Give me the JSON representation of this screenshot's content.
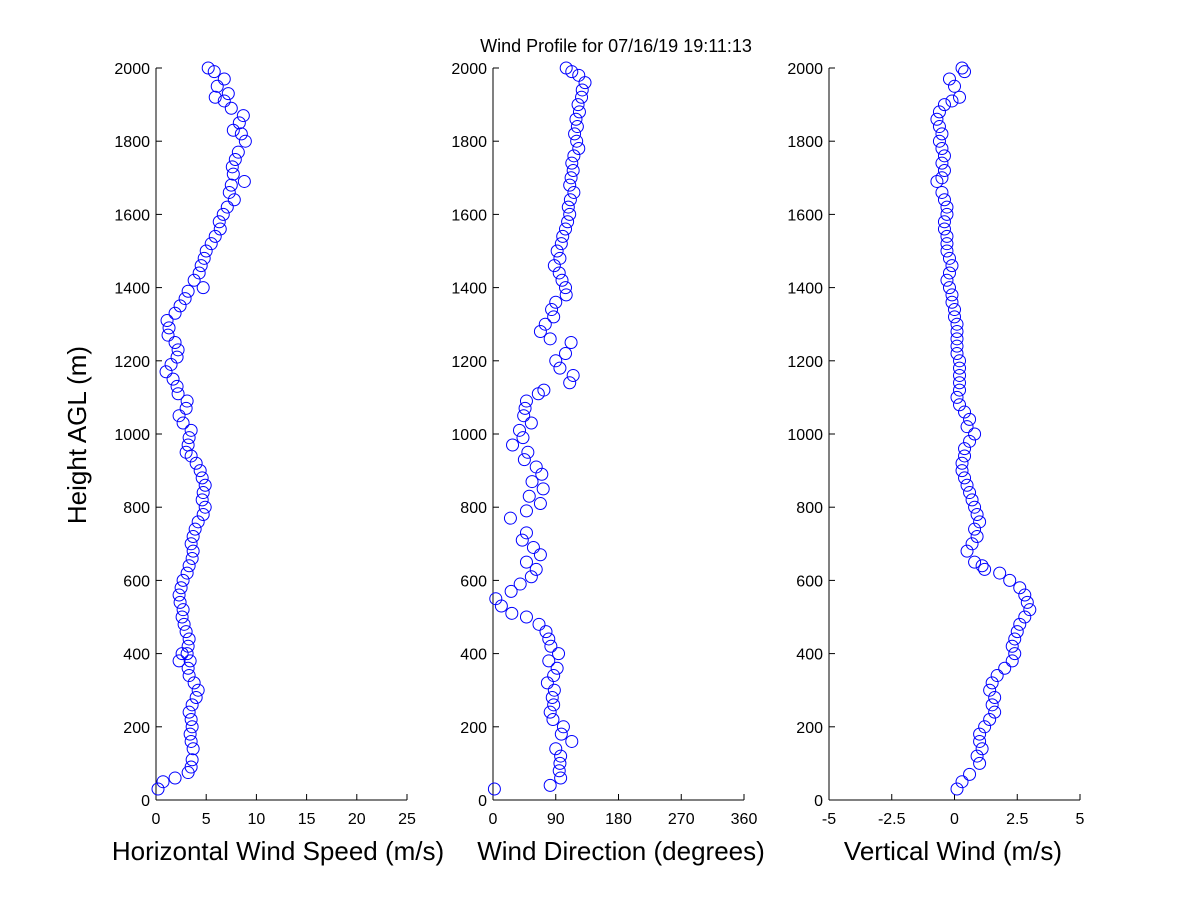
{
  "title": "Wind Profile for  07/16/19 19:11:13",
  "colors": {
    "marker": "#0000ff",
    "axis": "#000000",
    "background": "#ffffff"
  },
  "chart_data": [
    {
      "type": "scatter",
      "xlabel": "Horizontal Wind Speed (m/s)",
      "ylabel": "Height AGL (m)",
      "xlim": [
        0,
        25
      ],
      "ylim": [
        0,
        2000
      ],
      "xticks": [
        "0",
        "5",
        "10",
        "15",
        "20",
        "25"
      ],
      "yticks": [
        "0",
        "200",
        "400",
        "600",
        "800",
        "1000",
        "1200",
        "1400",
        "1600",
        "1800",
        "2000"
      ],
      "marker": "circle-open",
      "points": [
        [
          0.2,
          30
        ],
        [
          0.7,
          50
        ],
        [
          1.9,
          60
        ],
        [
          3.2,
          75
        ],
        [
          3.5,
          90
        ],
        [
          3.6,
          110
        ],
        [
          3.7,
          140
        ],
        [
          3.5,
          160
        ],
        [
          3.4,
          180
        ],
        [
          3.6,
          200
        ],
        [
          3.5,
          220
        ],
        [
          3.3,
          240
        ],
        [
          3.6,
          260
        ],
        [
          4.0,
          280
        ],
        [
          4.2,
          300
        ],
        [
          3.8,
          320
        ],
        [
          3.3,
          340
        ],
        [
          3.2,
          360
        ],
        [
          3.4,
          380
        ],
        [
          2.3,
          380
        ],
        [
          3.1,
          400
        ],
        [
          2.6,
          400
        ],
        [
          3.2,
          420
        ],
        [
          3.3,
          440
        ],
        [
          3.0,
          460
        ],
        [
          2.8,
          480
        ],
        [
          2.6,
          500
        ],
        [
          2.7,
          520
        ],
        [
          2.4,
          540
        ],
        [
          2.3,
          560
        ],
        [
          2.5,
          580
        ],
        [
          2.7,
          600
        ],
        [
          3.1,
          620
        ],
        [
          3.3,
          640
        ],
        [
          3.6,
          660
        ],
        [
          3.7,
          680
        ],
        [
          3.5,
          700
        ],
        [
          3.7,
          720
        ],
        [
          3.9,
          740
        ],
        [
          4.2,
          760
        ],
        [
          4.7,
          780
        ],
        [
          4.9,
          800
        ],
        [
          4.6,
          820
        ],
        [
          4.7,
          840
        ],
        [
          4.9,
          860
        ],
        [
          4.6,
          880
        ],
        [
          4.4,
          900
        ],
        [
          4.0,
          920
        ],
        [
          3.5,
          940
        ],
        [
          3.0,
          950
        ],
        [
          3.2,
          970
        ],
        [
          3.3,
          990
        ],
        [
          3.5,
          1010
        ],
        [
          2.7,
          1030
        ],
        [
          2.3,
          1050
        ],
        [
          3.0,
          1070
        ],
        [
          3.1,
          1090
        ],
        [
          2.2,
          1110
        ],
        [
          2.1,
          1130
        ],
        [
          1.7,
          1150
        ],
        [
          1.0,
          1170
        ],
        [
          1.5,
          1190
        ],
        [
          2.1,
          1210
        ],
        [
          2.2,
          1230
        ],
        [
          1.9,
          1250
        ],
        [
          1.2,
          1270
        ],
        [
          1.3,
          1290
        ],
        [
          1.1,
          1310
        ],
        [
          1.9,
          1330
        ],
        [
          2.4,
          1350
        ],
        [
          2.9,
          1370
        ],
        [
          3.2,
          1390
        ],
        [
          4.7,
          1400
        ],
        [
          3.8,
          1420
        ],
        [
          4.3,
          1440
        ],
        [
          4.5,
          1460
        ],
        [
          4.8,
          1480
        ],
        [
          5.0,
          1500
        ],
        [
          5.5,
          1520
        ],
        [
          5.9,
          1540
        ],
        [
          6.4,
          1560
        ],
        [
          6.3,
          1580
        ],
        [
          6.7,
          1600
        ],
        [
          7.1,
          1620
        ],
        [
          7.8,
          1640
        ],
        [
          7.3,
          1660
        ],
        [
          7.5,
          1680
        ],
        [
          8.8,
          1690
        ],
        [
          7.7,
          1710
        ],
        [
          7.6,
          1730
        ],
        [
          7.9,
          1750
        ],
        [
          8.2,
          1770
        ],
        [
          8.9,
          1800
        ],
        [
          8.5,
          1820
        ],
        [
          7.7,
          1830
        ],
        [
          8.3,
          1850
        ],
        [
          8.7,
          1870
        ],
        [
          7.5,
          1890
        ],
        [
          6.8,
          1910
        ],
        [
          5.9,
          1920
        ],
        [
          7.2,
          1930
        ],
        [
          6.1,
          1950
        ],
        [
          6.8,
          1970
        ],
        [
          5.8,
          1990
        ],
        [
          5.2,
          2000
        ]
      ]
    },
    {
      "type": "scatter",
      "xlabel": "Wind Direction (degrees)",
      "xlim": [
        0,
        360
      ],
      "ylim": [
        0,
        2000
      ],
      "xticks": [
        "0",
        "90",
        "180",
        "270",
        "360"
      ],
      "yticks": [
        "0",
        "200",
        "400",
        "600",
        "800",
        "1000",
        "1200",
        "1400",
        "1600",
        "1800",
        "2000"
      ],
      "marker": "circle-open",
      "points": [
        [
          2,
          30
        ],
        [
          82,
          40
        ],
        [
          97,
          60
        ],
        [
          95,
          80
        ],
        [
          96,
          100
        ],
        [
          97,
          120
        ],
        [
          90,
          140
        ],
        [
          113,
          160
        ],
        [
          98,
          180
        ],
        [
          101,
          200
        ],
        [
          86,
          220
        ],
        [
          82,
          240
        ],
        [
          87,
          260
        ],
        [
          85,
          280
        ],
        [
          88,
          300
        ],
        [
          78,
          320
        ],
        [
          87,
          340
        ],
        [
          92,
          360
        ],
        [
          80,
          380
        ],
        [
          94,
          400
        ],
        [
          83,
          420
        ],
        [
          80,
          440
        ],
        [
          76,
          460
        ],
        [
          66,
          480
        ],
        [
          48,
          500
        ],
        [
          27,
          510
        ],
        [
          12,
          530
        ],
        [
          4,
          550
        ],
        [
          26,
          570
        ],
        [
          39,
          590
        ],
        [
          55,
          610
        ],
        [
          62,
          630
        ],
        [
          48,
          650
        ],
        [
          68,
          670
        ],
        [
          58,
          690
        ],
        [
          42,
          710
        ],
        [
          48,
          730
        ],
        [
          25,
          770
        ],
        [
          48,
          790
        ],
        [
          68,
          810
        ],
        [
          52,
          830
        ],
        [
          72,
          850
        ],
        [
          56,
          870
        ],
        [
          70,
          890
        ],
        [
          62,
          910
        ],
        [
          45,
          930
        ],
        [
          50,
          950
        ],
        [
          28,
          970
        ],
        [
          43,
          990
        ],
        [
          38,
          1010
        ],
        [
          55,
          1030
        ],
        [
          44,
          1050
        ],
        [
          46,
          1070
        ],
        [
          48,
          1090
        ],
        [
          65,
          1110
        ],
        [
          73,
          1120
        ],
        [
          110,
          1140
        ],
        [
          115,
          1160
        ],
        [
          96,
          1180
        ],
        [
          90,
          1200
        ],
        [
          104,
          1220
        ],
        [
          112,
          1250
        ],
        [
          82,
          1260
        ],
        [
          68,
          1280
        ],
        [
          75,
          1300
        ],
        [
          87,
          1320
        ],
        [
          84,
          1340
        ],
        [
          90,
          1360
        ],
        [
          105,
          1380
        ],
        [
          104,
          1400
        ],
        [
          99,
          1420
        ],
        [
          95,
          1440
        ],
        [
          88,
          1460
        ],
        [
          96,
          1480
        ],
        [
          92,
          1500
        ],
        [
          98,
          1520
        ],
        [
          100,
          1540
        ],
        [
          104,
          1560
        ],
        [
          107,
          1580
        ],
        [
          110,
          1600
        ],
        [
          108,
          1620
        ],
        [
          111,
          1640
        ],
        [
          116,
          1660
        ],
        [
          110,
          1680
        ],
        [
          112,
          1700
        ],
        [
          115,
          1720
        ],
        [
          113,
          1740
        ],
        [
          116,
          1760
        ],
        [
          123,
          1780
        ],
        [
          120,
          1800
        ],
        [
          117,
          1820
        ],
        [
          121,
          1840
        ],
        [
          119,
          1860
        ],
        [
          124,
          1880
        ],
        [
          122,
          1900
        ],
        [
          127,
          1920
        ],
        [
          128,
          1940
        ],
        [
          132,
          1960
        ],
        [
          123,
          1980
        ],
        [
          113,
          1990
        ],
        [
          105,
          2000
        ]
      ]
    },
    {
      "type": "scatter",
      "xlabel": "Vertical Wind (m/s)",
      "xlim": [
        -5,
        5
      ],
      "ylim": [
        0,
        2000
      ],
      "xticks": [
        "-5",
        "-2.5",
        "0",
        "2.5",
        "5"
      ],
      "yticks": [
        "0",
        "200",
        "400",
        "600",
        "800",
        "1000",
        "1200",
        "1400",
        "1600",
        "1800",
        "2000"
      ],
      "marker": "circle-open",
      "points": [
        [
          0.1,
          30
        ],
        [
          0.3,
          50
        ],
        [
          0.6,
          70
        ],
        [
          1.0,
          100
        ],
        [
          0.9,
          120
        ],
        [
          1.1,
          140
        ],
        [
          1.0,
          160
        ],
        [
          1.0,
          180
        ],
        [
          1.2,
          200
        ],
        [
          1.4,
          220
        ],
        [
          1.6,
          240
        ],
        [
          1.5,
          260
        ],
        [
          1.6,
          280
        ],
        [
          1.4,
          300
        ],
        [
          1.5,
          320
        ],
        [
          1.7,
          340
        ],
        [
          2.0,
          360
        ],
        [
          2.3,
          380
        ],
        [
          2.4,
          400
        ],
        [
          2.3,
          420
        ],
        [
          2.4,
          440
        ],
        [
          2.5,
          460
        ],
        [
          2.6,
          480
        ],
        [
          2.8,
          500
        ],
        [
          3.0,
          520
        ],
        [
          2.9,
          540
        ],
        [
          2.8,
          560
        ],
        [
          2.6,
          580
        ],
        [
          2.2,
          600
        ],
        [
          1.8,
          620
        ],
        [
          1.2,
          630
        ],
        [
          1.1,
          640
        ],
        [
          0.8,
          650
        ],
        [
          0.5,
          680
        ],
        [
          0.7,
          700
        ],
        [
          0.9,
          720
        ],
        [
          0.8,
          740
        ],
        [
          1.0,
          760
        ],
        [
          0.9,
          780
        ],
        [
          0.8,
          800
        ],
        [
          0.7,
          820
        ],
        [
          0.6,
          840
        ],
        [
          0.5,
          860
        ],
        [
          0.4,
          880
        ],
        [
          0.3,
          900
        ],
        [
          0.3,
          920
        ],
        [
          0.4,
          940
        ],
        [
          0.4,
          960
        ],
        [
          0.6,
          980
        ],
        [
          0.8,
          1000
        ],
        [
          0.5,
          1020
        ],
        [
          0.6,
          1040
        ],
        [
          0.4,
          1060
        ],
        [
          0.2,
          1080
        ],
        [
          0.1,
          1100
        ],
        [
          0.2,
          1120
        ],
        [
          0.2,
          1140
        ],
        [
          0.2,
          1160
        ],
        [
          0.2,
          1180
        ],
        [
          0.2,
          1200
        ],
        [
          0.1,
          1220
        ],
        [
          0.1,
          1240
        ],
        [
          0.1,
          1260
        ],
        [
          0.1,
          1280
        ],
        [
          0.1,
          1300
        ],
        [
          0.0,
          1320
        ],
        [
          0.0,
          1340
        ],
        [
          -0.1,
          1360
        ],
        [
          -0.1,
          1380
        ],
        [
          -0.2,
          1400
        ],
        [
          -0.3,
          1420
        ],
        [
          -0.2,
          1440
        ],
        [
          -0.1,
          1460
        ],
        [
          -0.2,
          1480
        ],
        [
          -0.3,
          1500
        ],
        [
          -0.3,
          1520
        ],
        [
          -0.3,
          1540
        ],
        [
          -0.4,
          1560
        ],
        [
          -0.4,
          1580
        ],
        [
          -0.3,
          1600
        ],
        [
          -0.3,
          1620
        ],
        [
          -0.4,
          1640
        ],
        [
          -0.5,
          1660
        ],
        [
          -0.7,
          1690
        ],
        [
          -0.5,
          1700
        ],
        [
          -0.4,
          1720
        ],
        [
          -0.5,
          1740
        ],
        [
          -0.4,
          1760
        ],
        [
          -0.5,
          1780
        ],
        [
          -0.6,
          1800
        ],
        [
          -0.5,
          1820
        ],
        [
          -0.6,
          1840
        ],
        [
          -0.7,
          1860
        ],
        [
          -0.6,
          1880
        ],
        [
          -0.4,
          1900
        ],
        [
          -0.1,
          1910
        ],
        [
          0.2,
          1920
        ],
        [
          0.0,
          1950
        ],
        [
          -0.2,
          1970
        ],
        [
          0.4,
          1990
        ],
        [
          0.3,
          2000
        ]
      ]
    }
  ]
}
